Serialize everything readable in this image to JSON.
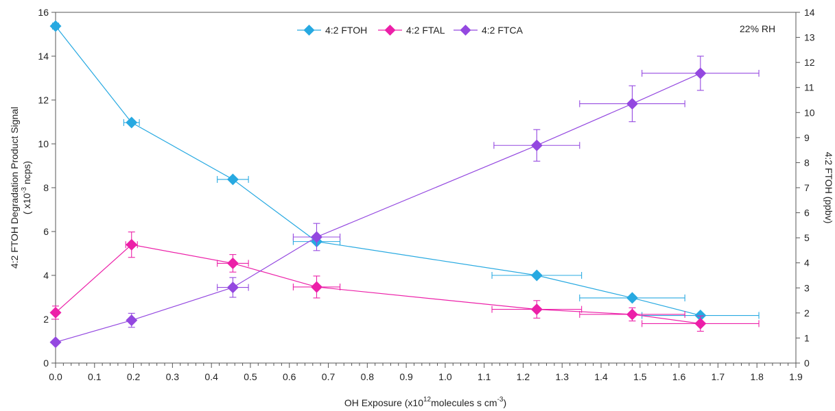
{
  "chart_data": {
    "type": "scatter",
    "xlabel": {
      "main": "OH Exposure (x10",
      "sup1": "12",
      "mid": "molecules s cm",
      "sup2": "-3",
      "end": ")"
    },
    "ylabel_left": {
      "line1": "4:2 FTOH  Degradation Product Signal",
      "line2a": "( x10",
      "line2sup": "-3",
      "line2b": " ncps)"
    },
    "ylabel_right": "4:2 FTOH (ppbv)",
    "annotation": "22% RH",
    "xlim": [
      0,
      1.9
    ],
    "ylim_left": [
      0,
      16
    ],
    "ylim_right": [
      0,
      14
    ],
    "x_ticks": [
      "0.0",
      "0.1",
      "0.2",
      "0.3",
      "0.4",
      "0.5",
      "0.6",
      "0.7",
      "0.8",
      "0.9",
      "1.0",
      "1.1",
      "1.2",
      "1.3",
      "1.4",
      "1.5",
      "1.6",
      "1.7",
      "1.8",
      "1.9"
    ],
    "y_left_ticks": [
      "0",
      "2",
      "4",
      "6",
      "8",
      "10",
      "12",
      "14",
      "16"
    ],
    "y_right_ticks": [
      "0",
      "1",
      "2",
      "3",
      "4",
      "5",
      "6",
      "7",
      "8",
      "9",
      "10",
      "11",
      "12",
      "13",
      "14"
    ],
    "legend_position": "top-center",
    "series": [
      {
        "name": "4:2 FTOH",
        "axis": "right",
        "color": "#27a9e1",
        "x": [
          0.0,
          0.195,
          0.455,
          0.67,
          1.235,
          1.48,
          1.655
        ],
        "y": [
          13.45,
          9.6,
          7.33,
          4.85,
          3.5,
          2.6,
          1.9
        ],
        "xerr": [
          0.008,
          0.02,
          0.04,
          0.06,
          0.115,
          0.135,
          0.15
        ],
        "yerr": [
          0,
          0,
          0,
          0,
          0,
          0,
          0
        ]
      },
      {
        "name": "4:2 FTAL",
        "axis": "left",
        "color": "#ec1fa8",
        "x": [
          0.0,
          0.195,
          0.455,
          0.67,
          1.235,
          1.48,
          1.655
        ],
        "y": [
          2.3,
          5.4,
          4.55,
          3.47,
          2.45,
          2.22,
          1.8
        ],
        "xerr": [
          0,
          0.015,
          0.04,
          0.06,
          0.115,
          0.135,
          0.15
        ],
        "yerr": [
          0.3,
          0.58,
          0.4,
          0.5,
          0.4,
          0.3,
          0.35
        ]
      },
      {
        "name": "4:2 FTCA",
        "axis": "left",
        "color": "#9448e0",
        "x": [
          0.0,
          0.195,
          0.455,
          0.67,
          1.235,
          1.48,
          1.655
        ],
        "y": [
          0.95,
          1.95,
          3.45,
          5.75,
          9.93,
          11.83,
          13.22
        ],
        "xerr": [
          0,
          0,
          0.04,
          0.06,
          0.11,
          0.135,
          0.15
        ],
        "yerr": [
          0.05,
          0.32,
          0.45,
          0.62,
          0.72,
          0.82,
          0.78
        ]
      }
    ]
  }
}
